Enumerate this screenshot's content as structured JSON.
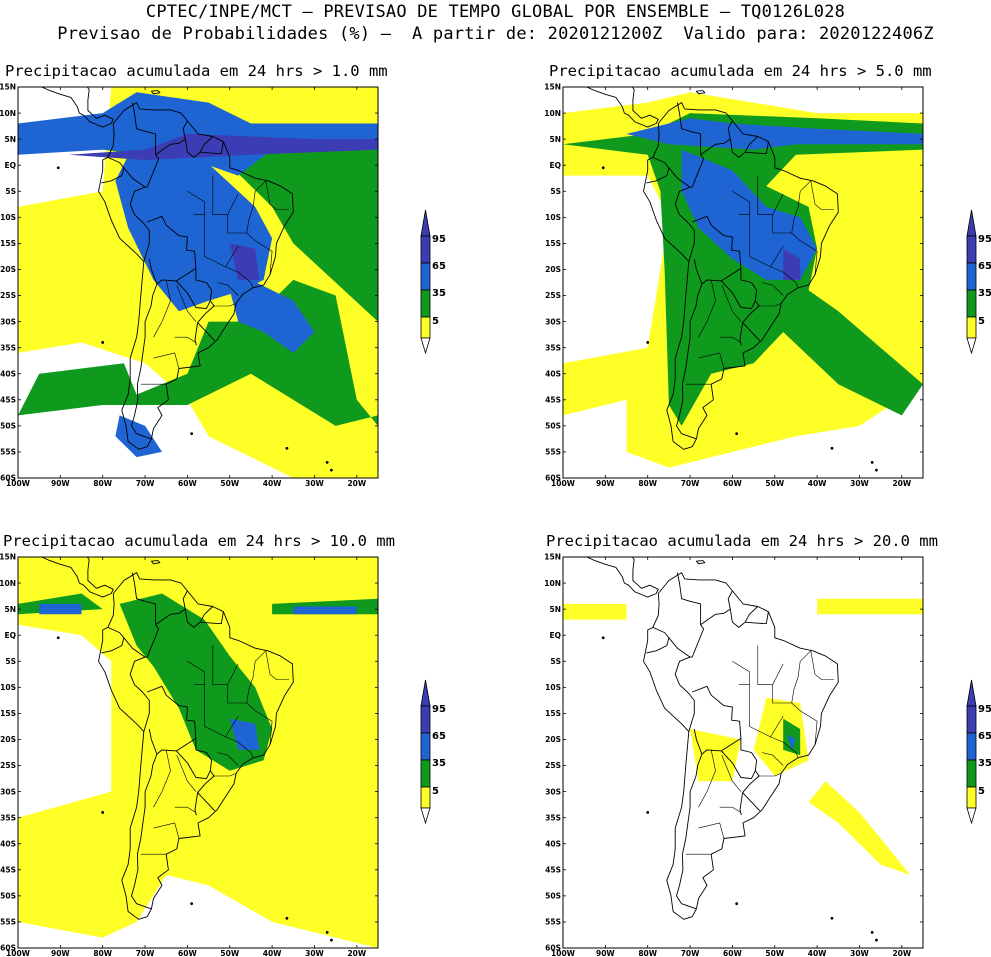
{
  "header": {
    "line1": "CPTEC/INPE/MCT – PREVISAO DE TEMPO GLOBAL POR ENSEMBLE – TQ0126L028",
    "line2": "Previsao de Probabilidades (%) –  A partir de: 2020121200Z  Valido para: 2020122406Z"
  },
  "panels": [
    {
      "title": "Precipitacao acumulada em 24 hrs > 1.0 mm",
      "level": "high"
    },
    {
      "title": "Precipitacao acumulada em 24 hrs > 5.0 mm",
      "level": "mid"
    },
    {
      "title": "Precipitacao acumulada em 24 hrs > 10.0 mm",
      "level": "low"
    },
    {
      "title": "Precipitacao acumulada em 24 hrs > 20.0 mm",
      "level": "min"
    }
  ],
  "axes": {
    "lat_labels": [
      "15N",
      "10N",
      "5N",
      "EQ",
      "5S",
      "10S",
      "15S",
      "20S",
      "25S",
      "30S",
      "35S",
      "40S",
      "45S",
      "50S",
      "55S",
      "60S"
    ],
    "lon_labels": [
      "100W",
      "90W",
      "80W",
      "70W",
      "60W",
      "50W",
      "40W",
      "30W",
      "20W"
    ]
  },
  "colorbar": {
    "labels": [
      "95",
      "65",
      "35",
      "5"
    ],
    "colors": {
      "c95": "#3c3cb4",
      "c65": "#1e64d2",
      "c35": "#0f9a1e",
      "c5": "#ffff28"
    }
  }
}
